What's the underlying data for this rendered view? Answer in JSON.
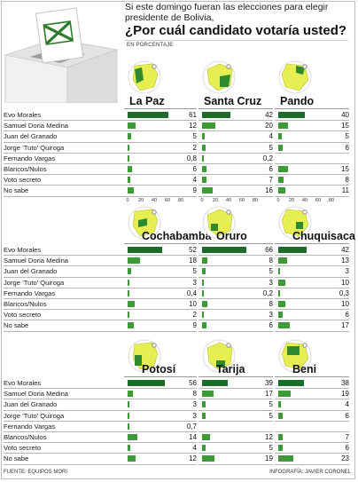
{
  "header": {
    "subtitle": "Si este domingo fueran las elecciones para elegir presidente de Bolivia,",
    "title": "¿Por cuál candidato votaría usted?",
    "unit_note": "EN PORCENTAJE"
  },
  "footer": {
    "source": "FUENTE: EQUIPOS MORI",
    "credit": "INFOGRAFÍA: JAVIER CORONEL"
  },
  "colors": {
    "bar": "#3e9a37",
    "bar_top": "#1c6b2a",
    "map_bg": "#e6ee52",
    "map_region": "#2f8a2f"
  },
  "chart_data": {
    "type": "bar",
    "orientation": "horizontal",
    "xlim": [
      0,
      80
    ],
    "xticks": [
      "0",
      "20",
      "40",
      "60",
      "80"
    ],
    "categories": [
      "Evo Morales",
      "Samuel Doria Medina",
      "Juan del Granado",
      "Jorge ‘Tuto’ Quiroga",
      "Fernando Vargas",
      "Blancos/Nulos",
      "Voto secreto",
      "No sabe"
    ],
    "series": [
      {
        "name": "La Paz",
        "labels": [
          "61",
          "12",
          "5",
          "2",
          "0,8",
          "6",
          "4",
          "9"
        ],
        "values": [
          61,
          12,
          5,
          2,
          0.8,
          6,
          4,
          9
        ]
      },
      {
        "name": "Santa Cruz",
        "labels": [
          "42",
          "20",
          "4",
          "5",
          "0,2",
          "6",
          "7",
          "16"
        ],
        "values": [
          42,
          20,
          4,
          5,
          0.2,
          6,
          7,
          16
        ]
      },
      {
        "name": "Pando",
        "labels": [
          "40",
          "15",
          "5",
          "6",
          "",
          "15",
          "8",
          "11"
        ],
        "values": [
          40,
          15,
          5,
          6,
          0,
          15,
          8,
          11
        ]
      },
      {
        "name": "Cochabamba",
        "labels": [
          "52",
          "18",
          "5",
          "3",
          "0,4",
          "10",
          "2",
          "9"
        ],
        "values": [
          52,
          18,
          5,
          3,
          0.4,
          10,
          2,
          9
        ]
      },
      {
        "name": "Oruro",
        "labels": [
          "66",
          "8",
          "5",
          "3",
          "0,2",
          "8",
          "3",
          "6"
        ],
        "values": [
          66,
          8,
          5,
          3,
          0.2,
          8,
          3,
          6
        ]
      },
      {
        "name": "Chuquisaca",
        "labels": [
          "42",
          "13",
          "3",
          "10",
          "0,3",
          "10",
          "6",
          "17"
        ],
        "values": [
          42,
          13,
          3,
          10,
          0.3,
          10,
          6,
          17
        ]
      },
      {
        "name": "Potosí",
        "labels": [
          "56",
          "8",
          "3",
          "3",
          "0,7",
          "14",
          "4",
          "12"
        ],
        "values": [
          56,
          8,
          3,
          3,
          0.7,
          14,
          4,
          12
        ]
      },
      {
        "name": "Tarija",
        "labels": [
          "39",
          "17",
          "5",
          "5",
          "",
          "12",
          "5",
          "19"
        ],
        "values": [
          39,
          17,
          5,
          5,
          0,
          12,
          5,
          19
        ]
      },
      {
        "name": "Beni",
        "labels": [
          "38",
          "19",
          "4",
          "6",
          "",
          "7",
          "6",
          "23"
        ],
        "values": [
          38,
          19,
          4,
          6,
          0,
          7,
          6,
          23
        ]
      }
    ]
  }
}
